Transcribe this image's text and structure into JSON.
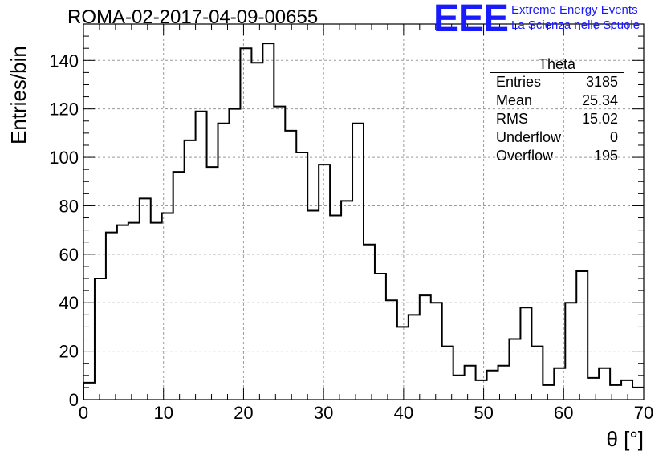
{
  "header": {
    "title": "ROMA-02-2017-04-09-00655",
    "logo": "EEE",
    "logo_line1": "Extreme Energy Events",
    "logo_line2": "La Scienza nelle Scuole"
  },
  "stats_box": {
    "title": "Theta",
    "rows": [
      {
        "label": "Entries",
        "value": "3185"
      },
      {
        "label": "Mean",
        "value": "25.34"
      },
      {
        "label": "RMS",
        "value": "15.02"
      },
      {
        "label": "Underflow",
        "value": "0"
      },
      {
        "label": "Overflow",
        "value": "195"
      }
    ]
  },
  "colors": {
    "line": "#000000",
    "grid": "#9a9a9a",
    "logo": "#1a1aff"
  },
  "chart_data": {
    "type": "histogram",
    "xlabel": "θ [°]",
    "ylabel": "Entries/bin",
    "xlim": [
      0,
      70
    ],
    "ylim": [
      0,
      155
    ],
    "grid": true,
    "xticks": [
      0,
      10,
      20,
      30,
      40,
      50,
      60,
      70
    ],
    "yticks": [
      0,
      20,
      40,
      60,
      80,
      100,
      120,
      140
    ],
    "bin_width": 1.4,
    "bin_start": 0,
    "values": [
      7,
      50,
      69,
      72,
      73,
      83,
      73,
      77,
      94,
      107,
      119,
      96,
      114,
      120,
      145,
      139,
      147,
      121,
      111,
      102,
      78,
      97,
      76,
      82,
      114,
      64,
      52,
      41,
      30,
      35,
      43,
      40,
      22,
      10,
      14,
      8,
      12,
      14,
      25,
      38,
      22,
      6,
      13,
      40,
      53,
      9,
      13,
      6,
      8,
      5
    ]
  }
}
